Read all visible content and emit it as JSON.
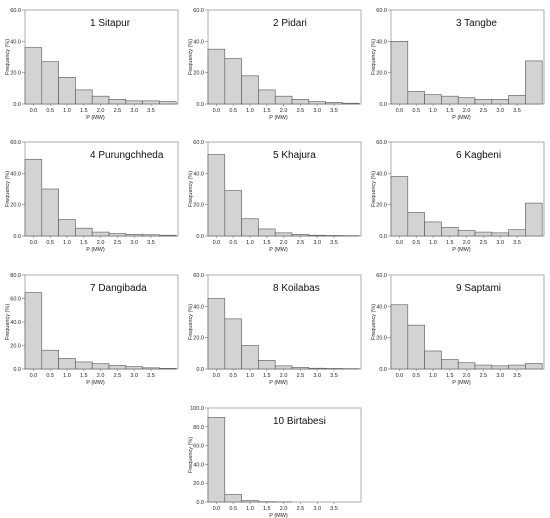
{
  "chart_data": [
    {
      "type": "bar",
      "title": "1 Sitapur",
      "xlabel": "P (MW)",
      "ylabel": "Frequency (%)",
      "ylim": [
        0,
        60
      ],
      "yticks": [
        "0.0",
        "20.0",
        "40.0",
        "60.0"
      ],
      "xticks": [
        "0.0",
        "0.5",
        "1.0",
        "1.5",
        "2.0",
        "2.5",
        "3.0",
        "3.5"
      ],
      "values": [
        36,
        27,
        17,
        9,
        5,
        3,
        2,
        2,
        1.5
      ]
    },
    {
      "type": "bar",
      "title": "2 Pidari",
      "xlabel": "P (MW)",
      "ylabel": "Frequency (%)",
      "ylim": [
        0,
        60
      ],
      "yticks": [
        "0.0",
        "20.0",
        "40.0",
        "60.0"
      ],
      "xticks": [
        "0.0",
        "0.5",
        "1.0",
        "1.5",
        "2.0",
        "2.5",
        "3.0",
        "3.5"
      ],
      "values": [
        35,
        29,
        18,
        9,
        5,
        3,
        1.5,
        1,
        0.5
      ]
    },
    {
      "type": "bar",
      "title": "3 Tangbe",
      "xlabel": "P (MW)",
      "ylabel": "Frequency (%)",
      "ylim": [
        0,
        60
      ],
      "yticks": [
        "0.0",
        "20.0",
        "40.0",
        "60.0"
      ],
      "xticks": [
        "0.0",
        "0.5",
        "1.0",
        "1.5",
        "2.0",
        "2.5",
        "3.0",
        "3.5"
      ],
      "values": [
        40,
        8,
        6,
        5,
        4,
        3,
        3,
        5.5,
        27.5
      ]
    },
    {
      "type": "bar",
      "title": "4 Purungchheda",
      "xlabel": "P (MW)",
      "ylabel": "Frequency (%)",
      "ylim": [
        0,
        60
      ],
      "yticks": [
        "0.0",
        "20.0",
        "40.0",
        "60.0"
      ],
      "xticks": [
        "0.0",
        "0.5",
        "1.0",
        "1.5",
        "2.0",
        "2.5",
        "3.0",
        "3.5"
      ],
      "values": [
        49,
        30,
        10.5,
        5,
        2.5,
        1.5,
        1,
        0.8,
        0.5
      ]
    },
    {
      "type": "bar",
      "title": "5 Khajura",
      "xlabel": "P (MW)",
      "ylabel": "Frequency (%)",
      "ylim": [
        0,
        60
      ],
      "yticks": [
        "0.0",
        "20.0",
        "40.0",
        "60.0"
      ],
      "xticks": [
        "0.0",
        "0.5",
        "1.0",
        "1.5",
        "2.0",
        "2.5",
        "3.0",
        "3.5"
      ],
      "values": [
        52,
        29,
        11,
        4.5,
        2,
        1,
        0.5,
        0.3,
        0.2
      ]
    },
    {
      "type": "bar",
      "title": "6 Kagbeni",
      "xlabel": "P (MW)",
      "ylabel": "Frequency (%)",
      "ylim": [
        0,
        60
      ],
      "yticks": [
        "0.0",
        "20.0",
        "40.0",
        "60.0"
      ],
      "xticks": [
        "0.0",
        "0.5",
        "1.0",
        "1.5",
        "2.0",
        "2.5",
        "3.0",
        "3.5"
      ],
      "values": [
        38,
        15,
        9,
        5.5,
        3.5,
        2.5,
        2,
        4,
        21
      ]
    },
    {
      "type": "bar",
      "title": "7 Dangibada",
      "xlabel": "P (MW)",
      "ylabel": "Frequency (%)",
      "ylim": [
        0,
        80
      ],
      "yticks": [
        "0.0",
        "20.0",
        "40.0",
        "60.0",
        "80.0"
      ],
      "xticks": [
        "0.0",
        "0.5",
        "1.0",
        "1.5",
        "2.0",
        "2.5",
        "3.0",
        "3.5"
      ],
      "values": [
        65,
        16,
        9,
        6,
        4.5,
        3,
        2,
        1,
        0.5
      ]
    },
    {
      "type": "bar",
      "title": "8 Koilabas",
      "xlabel": "P (MW)",
      "ylabel": "Frequency (%)",
      "ylim": [
        0,
        60
      ],
      "yticks": [
        "0.0",
        "20.0",
        "40.0",
        "60.0"
      ],
      "xticks": [
        "0.0",
        "0.5",
        "1.0",
        "1.5",
        "2.0",
        "2.5",
        "3.0",
        "3.5"
      ],
      "values": [
        45,
        32,
        15,
        5.5,
        2,
        1,
        0.5,
        0.3,
        0.2
      ]
    },
    {
      "type": "bar",
      "title": "9 Saptami",
      "xlabel": "P (MW)",
      "ylabel": "Frequency (%)",
      "ylim": [
        0,
        60
      ],
      "yticks": [
        "0.0",
        "20.0",
        "40.0",
        "60.0"
      ],
      "xticks": [
        "0.0",
        "0.5",
        "1.0",
        "1.5",
        "2.0",
        "2.5",
        "3.0",
        "3.5"
      ],
      "values": [
        41,
        28,
        11.5,
        6,
        4,
        2.5,
        2,
        2.5,
        3.5
      ]
    },
    {
      "type": "bar",
      "title": "10 Birtabesi",
      "xlabel": "P (MW)",
      "ylabel": "Frequency (%)",
      "ylim": [
        0,
        100
      ],
      "yticks": [
        "0.0",
        "20.0",
        "40.0",
        "60.0",
        "80.0",
        "100.0"
      ],
      "xticks": [
        "0.0",
        "0.5",
        "1.0",
        "1.5",
        "2.0",
        "2.5",
        "3.0",
        "3.5"
      ],
      "values": [
        90,
        8,
        1.5,
        0.3,
        0.1,
        0,
        0,
        0,
        0
      ]
    }
  ]
}
